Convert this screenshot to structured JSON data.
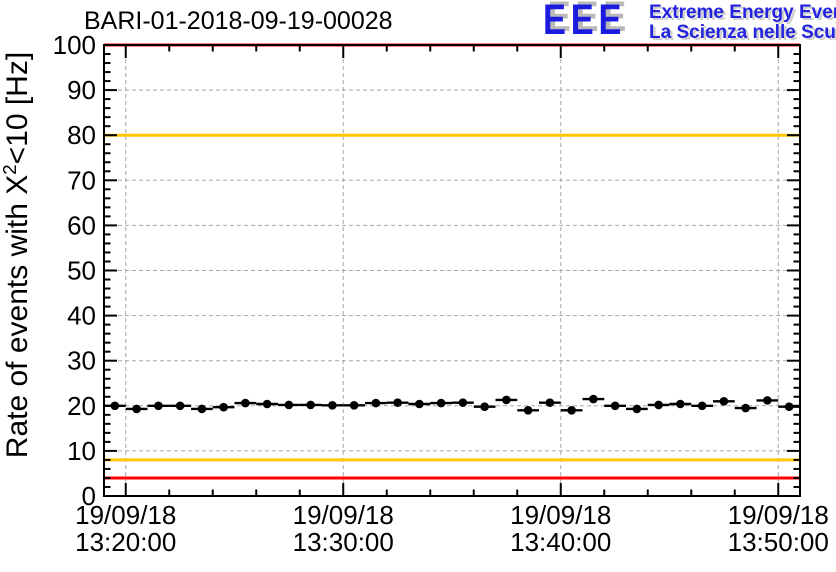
{
  "header": {
    "title": "BARI-01-2018-09-19-00028",
    "logo": {
      "acronym": "EEE",
      "line1": "Extreme Energy Events",
      "line2": "La Scienza nelle Scuole",
      "acronym_color": "#1c1ce0",
      "text_color": "#2424e0",
      "shadow_color": "#b9b9b9"
    }
  },
  "chart_data": {
    "type": "scatter",
    "title": "BARI-01-2018-09-19-00028",
    "xlabel": "",
    "ylabel": "Rate of events with X²<10 [Hz]",
    "grid": "dashed gray lines at every major tick",
    "legend": "none",
    "colors": {
      "grid": "#a8a8a8",
      "frame": "#000000",
      "marker": "#000000",
      "critical": "#ff0000",
      "warning": "#ffc800"
    },
    "yaxis": {
      "title_prefix": "Rate of events with X",
      "title_sup": "2",
      "title_suffix": "<10 [Hz]",
      "min": 0,
      "max": 100,
      "major_step": 10,
      "minor_step": 2,
      "ticks": [
        "0",
        "10",
        "20",
        "30",
        "40",
        "50",
        "60",
        "70",
        "80",
        "90",
        "100"
      ]
    },
    "xaxis": {
      "min": "13:19:00",
      "max": "13:51:00",
      "minor_step_minutes": 2,
      "ticks": [
        {
          "date": "19/09/18",
          "time": "13:20:00"
        },
        {
          "date": "19/09/18",
          "time": "13:30:00"
        },
        {
          "date": "19/09/18",
          "time": "13:40:00"
        },
        {
          "date": "19/09/18",
          "time": "13:50:00"
        }
      ]
    },
    "threshold_lines": [
      {
        "level": "critical-high",
        "value": 100,
        "color": "#ff0000"
      },
      {
        "level": "warning-high",
        "value": 80,
        "color": "#ffc800"
      },
      {
        "level": "warning-low",
        "value": 8,
        "color": "#ffc800"
      },
      {
        "level": "critical-low",
        "value": 4,
        "color": "#ff0000"
      }
    ],
    "series": [
      {
        "name": "event-rate-chi2-lt-10",
        "marker": "filled-circle",
        "color": "#000000",
        "date": "19/09/18",
        "x_error_minutes": 0.5,
        "points": [
          {
            "time": "13:19:30",
            "value": 20.0
          },
          {
            "time": "13:20:30",
            "value": 19.3
          },
          {
            "time": "13:21:30",
            "value": 20.0
          },
          {
            "time": "13:22:30",
            "value": 20.0
          },
          {
            "time": "13:23:30",
            "value": 19.3
          },
          {
            "time": "13:24:30",
            "value": 19.7
          },
          {
            "time": "13:25:30",
            "value": 20.6
          },
          {
            "time": "13:26:30",
            "value": 20.4
          },
          {
            "time": "13:27:30",
            "value": 20.2
          },
          {
            "time": "13:28:30",
            "value": 20.2
          },
          {
            "time": "13:29:30",
            "value": 20.1
          },
          {
            "time": "13:30:30",
            "value": 20.1
          },
          {
            "time": "13:31:30",
            "value": 20.6
          },
          {
            "time": "13:32:30",
            "value": 20.7
          },
          {
            "time": "13:33:30",
            "value": 20.4
          },
          {
            "time": "13:34:30",
            "value": 20.6
          },
          {
            "time": "13:35:30",
            "value": 20.7
          },
          {
            "time": "13:36:30",
            "value": 19.8
          },
          {
            "time": "13:37:30",
            "value": 21.3
          },
          {
            "time": "13:38:30",
            "value": 19.0
          },
          {
            "time": "13:39:30",
            "value": 20.7
          },
          {
            "time": "13:40:30",
            "value": 19.0
          },
          {
            "time": "13:41:30",
            "value": 21.5
          },
          {
            "time": "13:42:30",
            "value": 20.0
          },
          {
            "time": "13:43:30",
            "value": 19.3
          },
          {
            "time": "13:44:30",
            "value": 20.2
          },
          {
            "time": "13:45:30",
            "value": 20.4
          },
          {
            "time": "13:46:30",
            "value": 20.0
          },
          {
            "time": "13:47:30",
            "value": 21.0
          },
          {
            "time": "13:48:30",
            "value": 19.5
          },
          {
            "time": "13:49:30",
            "value": 21.2
          },
          {
            "time": "13:50:30",
            "value": 19.8
          }
        ]
      }
    ]
  }
}
